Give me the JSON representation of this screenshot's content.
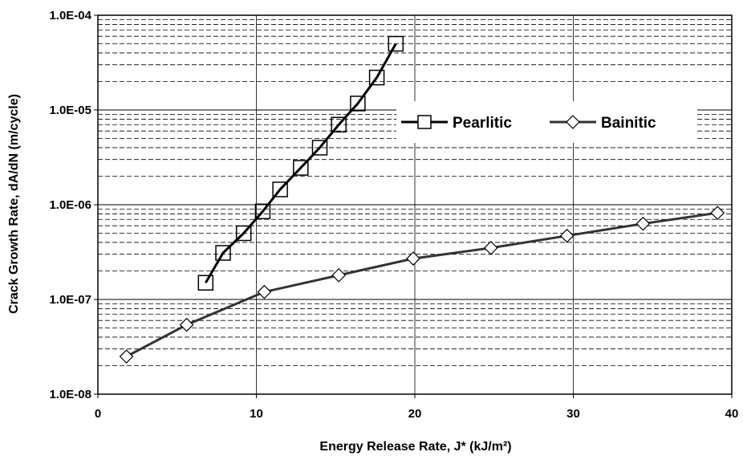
{
  "chart_data": {
    "type": "scatter",
    "xlabel": "Energy Release Rate, J* (kJ/m²)",
    "ylabel": "Crack Growth Rate, dA/dN (m/cycle)",
    "xlim": [
      0,
      40
    ],
    "ylim": [
      1e-08,
      0.0001
    ],
    "yscale": "log",
    "grid": true,
    "legend_position": "top-right, inside plot",
    "x_ticks": [
      "0",
      "10",
      "20",
      "30",
      "40"
    ],
    "y_ticks": [
      "1.0E-08",
      "1.0E-07",
      "1.0E-06",
      "1.0E-05",
      "1.0E-04"
    ],
    "series": [
      {
        "name": "Pearlitic",
        "marker": "square",
        "color": "#000000",
        "x": [
          6.8,
          7.9,
          9.2,
          10.4,
          11.5,
          12.8,
          14.0,
          15.2,
          16.4,
          17.6,
          18.8
        ],
        "y": [
          1.5e-07,
          3.1e-07,
          5e-07,
          8.5e-07,
          1.45e-06,
          2.45e-06,
          4e-06,
          7e-06,
          1.17e-05,
          2.2e-05,
          5e-05
        ]
      },
      {
        "name": "Bainitic",
        "marker": "diamond",
        "color": "#333333",
        "x": [
          1.8,
          5.6,
          10.5,
          15.2,
          19.9,
          24.8,
          29.6,
          34.4,
          39.1
        ],
        "y": [
          2.5e-08,
          5.4e-08,
          1.2e-07,
          1.8e-07,
          2.7e-07,
          3.5e-07,
          4.7e-07,
          6.3e-07,
          8.2e-07
        ]
      }
    ]
  }
}
